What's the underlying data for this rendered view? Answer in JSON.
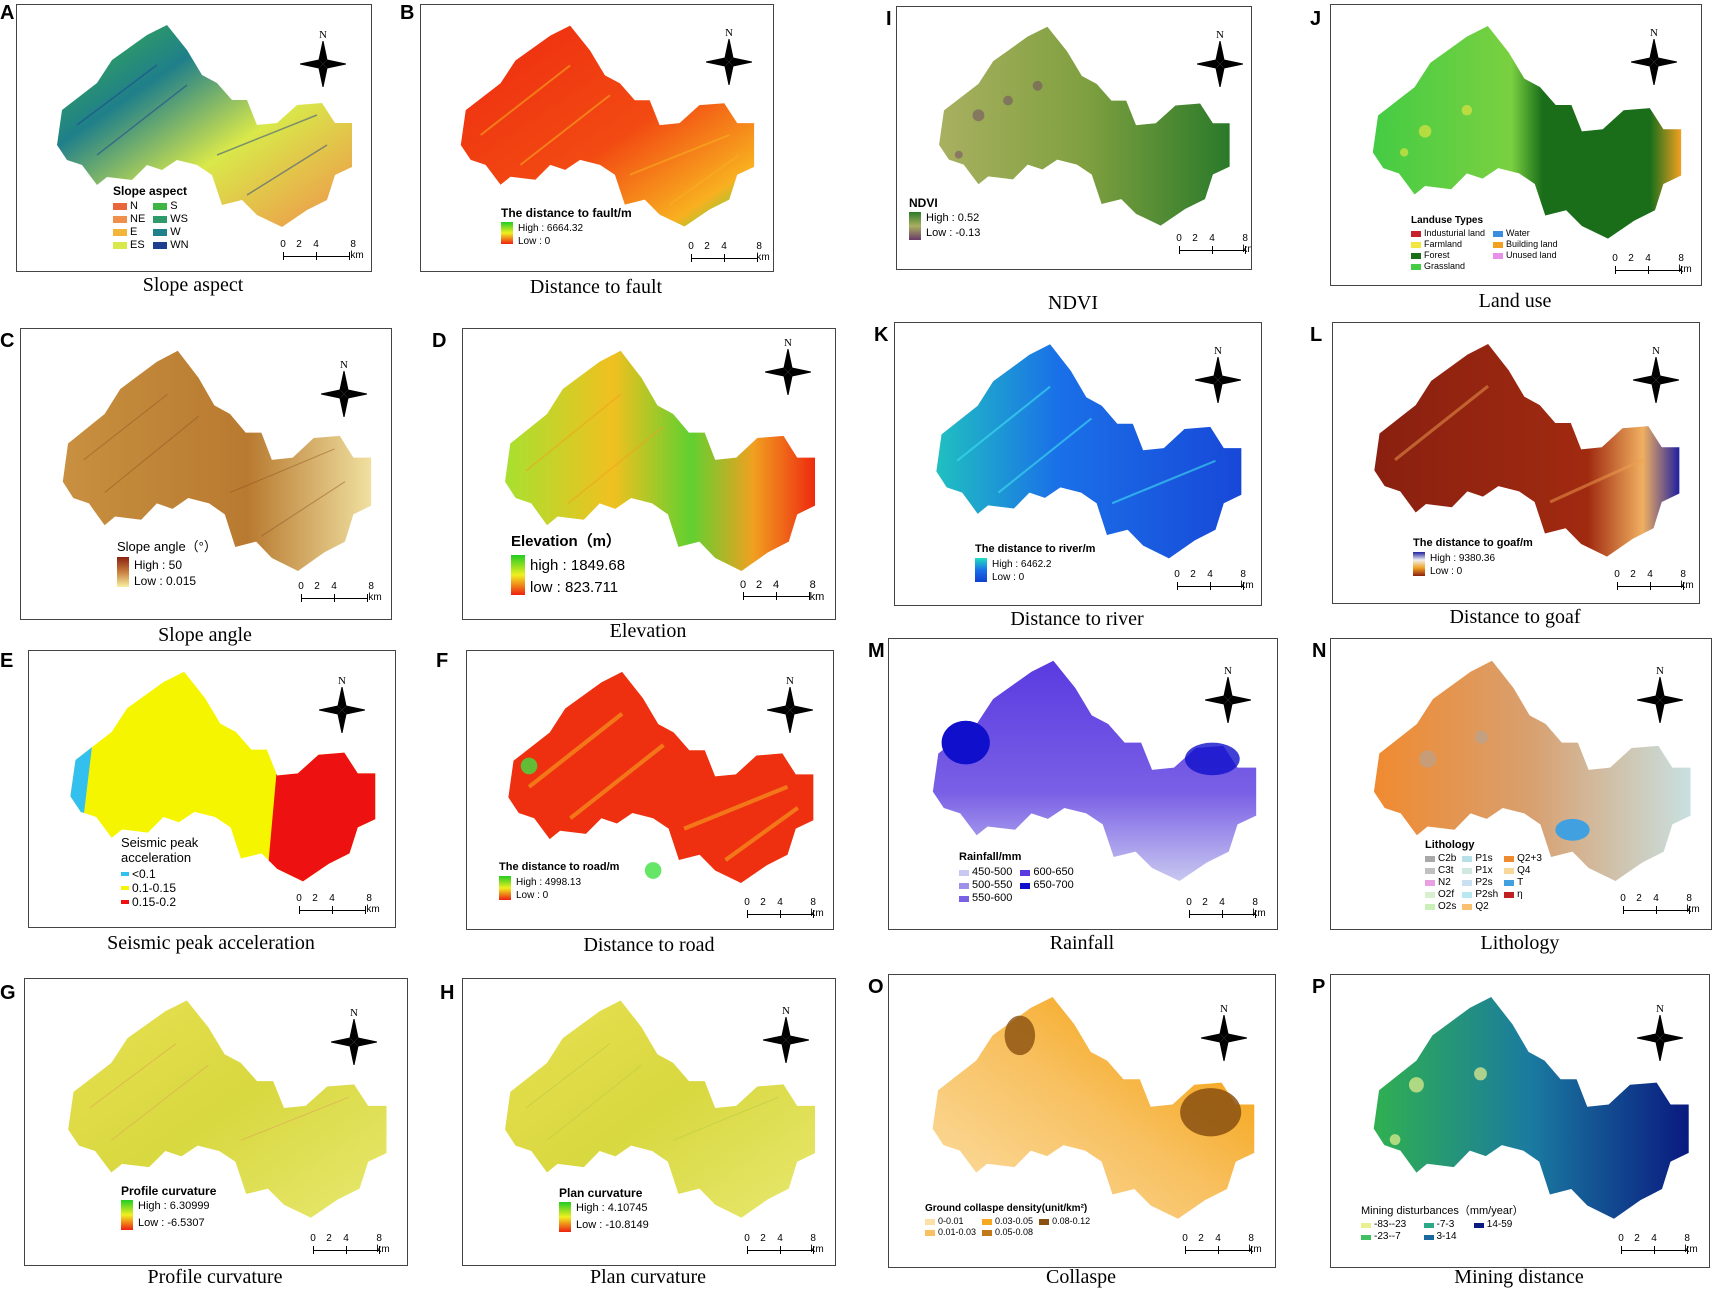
{
  "north_label": "N",
  "scale": {
    "t0": "0",
    "t1": "2",
    "t2": "4",
    "t3": "8 km"
  },
  "panels": {
    "A": {
      "letter": "A",
      "caption": "Slope aspect",
      "legend_title": "Slope aspect",
      "classes": [
        {
          "label": "N",
          "color": "#e8663a"
        },
        {
          "label": "S",
          "color": "#3cb544"
        },
        {
          "label": "NE",
          "color": "#f0904a"
        },
        {
          "label": "WS",
          "color": "#2f9a6a"
        },
        {
          "label": "E",
          "color": "#f3b43a"
        },
        {
          "label": "W",
          "color": "#1f7f8a"
        },
        {
          "label": "ES",
          "color": "#d9e84a"
        },
        {
          "label": "WN",
          "color": "#1c3f8f"
        }
      ]
    },
    "B": {
      "letter": "B",
      "caption": "Distance to fault",
      "legend_title": "The distance to fault/m",
      "high": "High : 6664.32",
      "low": "Low : 0"
    },
    "C": {
      "letter": "C",
      "caption": "Slope angle",
      "legend_title": "Slope angle（°）",
      "high": "High : 50",
      "low": "Low : 0.015"
    },
    "D": {
      "letter": "D",
      "caption": "Elevation",
      "legend_title": "Elevation（m）",
      "high": "high : 1849.68",
      "low": "low : 823.711"
    },
    "E": {
      "letter": "E",
      "caption": "Seismic peak acceleration",
      "legend_title": "Seismic peak acceleration",
      "classes": [
        {
          "label": "<0.1",
          "color": "#33c0ee"
        },
        {
          "label": "0.1-0.15",
          "color": "#f5f500"
        },
        {
          "label": "0.15-0.2",
          "color": "#ee1111"
        }
      ]
    },
    "F": {
      "letter": "F",
      "caption": "Distance to road",
      "legend_title": "The distance to road/m",
      "high": "High : 4998.13",
      "low": "Low : 0"
    },
    "G": {
      "letter": "G",
      "caption": "Profile curvature",
      "legend_title": "Profile curvature",
      "high": "High : 6.30999",
      "low": "Low : -6.5307"
    },
    "H": {
      "letter": "H",
      "caption": "Plan curvature",
      "legend_title": "Plan curvature",
      "high": "High : 4.10745",
      "low": "Low : -10.8149"
    },
    "I": {
      "letter": "I",
      "caption": "NDVI",
      "legend_title": "NDVI",
      "high": "High : 0.52",
      "low": "Low : -0.13"
    },
    "J": {
      "letter": "J",
      "caption": "Land use",
      "legend_title": "Landuse Types",
      "classes": [
        {
          "label": "Industurial land",
          "color": "#c8202a"
        },
        {
          "label": "Water",
          "color": "#3a8ee0"
        },
        {
          "label": "Farmland",
          "color": "#f2e640"
        },
        {
          "label": "Building land",
          "color": "#f2a020"
        },
        {
          "label": "Forest",
          "color": "#1a6e1a"
        },
        {
          "label": "Unused land",
          "color": "#e890e8"
        },
        {
          "label": "Grassland",
          "color": "#44cc44"
        }
      ]
    },
    "K": {
      "letter": "K",
      "caption": "Distance to river",
      "legend_title": "The distance to river/m",
      "high": "High : 6462.2",
      "low": "Low : 0"
    },
    "L": {
      "letter": "L",
      "caption": "Distance to goaf",
      "legend_title": "The distance to goaf/m",
      "high": "High : 9380.36",
      "low": "Low : 0"
    },
    "M": {
      "letter": "M",
      "caption": "Rainfall",
      "legend_title": "Rainfall/mm",
      "classes": [
        {
          "label": "450-500",
          "color": "#c8c8f0"
        },
        {
          "label": "600-650",
          "color": "#5a3ae0"
        },
        {
          "label": "500-550",
          "color": "#a090ea"
        },
        {
          "label": "650-700",
          "color": "#1010cc"
        },
        {
          "label": "550-600",
          "color": "#7a60e6"
        }
      ]
    },
    "N": {
      "letter": "N",
      "caption": "Lithology",
      "legend_title": "Lithology",
      "classes": [
        {
          "label": "C2b",
          "color": "#a8a8a8"
        },
        {
          "label": "P1s",
          "color": "#b8e0e8"
        },
        {
          "label": "Q2+3",
          "color": "#f08a30"
        },
        {
          "label": "C3t",
          "color": "#c0c0c0"
        },
        {
          "label": "P1x",
          "color": "#d0e8e0"
        },
        {
          "label": "Q4",
          "color": "#f8d898"
        },
        {
          "label": "N2",
          "color": "#e8a0e0"
        },
        {
          "label": "P2s",
          "color": "#c8e0f0"
        },
        {
          "label": "T",
          "color": "#40a0e0"
        },
        {
          "label": "O2f",
          "color": "#d8f0d0"
        },
        {
          "label": "P2sh",
          "color": "#b8e8f0"
        },
        {
          "label": "η",
          "color": "#c02020"
        },
        {
          "label": "O2s",
          "color": "#c8f0b8"
        },
        {
          "label": "Q2",
          "color": "#f8c070"
        }
      ]
    },
    "O": {
      "letter": "O",
      "caption": "Collaspe",
      "legend_title": "Ground collaspe density(unit/km²)",
      "classes": [
        {
          "label": "0-0.01",
          "color": "#fbe0a8"
        },
        {
          "label": "0.03-0.05",
          "color": "#f5a820"
        },
        {
          "label": "0.08-0.12",
          "color": "#8a5010"
        },
        {
          "label": "0.01-0.03",
          "color": "#f8c060"
        },
        {
          "label": "0.05-0.08",
          "color": "#c07818"
        }
      ]
    },
    "P": {
      "letter": "P",
      "caption": "Mining distance",
      "legend_title": "Mining disturbances（mm/year）",
      "classes": [
        {
          "label": "-83--23",
          "color": "#e8f090"
        },
        {
          "label": "-7-3",
          "color": "#2aa888"
        },
        {
          "label": "14-59",
          "color": "#0a1a80"
        },
        {
          "label": "-23--7",
          "color": "#40c060"
        },
        {
          "label": "3-14",
          "color": "#1a6aa0"
        }
      ]
    }
  }
}
